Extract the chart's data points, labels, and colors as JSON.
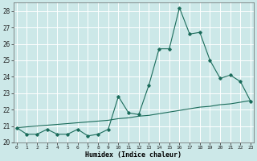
{
  "xlabel": "Humidex (Indice chaleur)",
  "background_color": "#cce8e8",
  "grid_color": "#ffffff",
  "line_color": "#1a6b5a",
  "x": [
    0,
    1,
    2,
    3,
    4,
    5,
    6,
    7,
    8,
    9,
    10,
    11,
    12,
    13,
    14,
    15,
    16,
    17,
    18,
    19,
    20,
    21,
    22,
    23
  ],
  "y_main": [
    20.9,
    20.5,
    20.5,
    20.8,
    20.5,
    20.5,
    20.8,
    20.4,
    20.5,
    20.8,
    22.8,
    21.8,
    21.7,
    23.5,
    25.7,
    25.7,
    28.2,
    26.6,
    26.7,
    25.0,
    23.9,
    24.1,
    23.7,
    22.5
  ],
  "y_trend": [
    20.9,
    20.95,
    21.0,
    21.05,
    21.1,
    21.15,
    21.2,
    21.25,
    21.3,
    21.35,
    21.45,
    21.5,
    21.6,
    21.65,
    21.75,
    21.85,
    21.95,
    22.05,
    22.15,
    22.2,
    22.3,
    22.35,
    22.45,
    22.55
  ],
  "ylim": [
    20,
    28.5
  ],
  "xlim": [
    -0.3,
    23.3
  ],
  "yticks": [
    20,
    21,
    22,
    23,
    24,
    25,
    26,
    27,
    28
  ],
  "xticks": [
    0,
    1,
    2,
    3,
    4,
    5,
    6,
    7,
    8,
    9,
    10,
    11,
    12,
    13,
    14,
    15,
    16,
    17,
    18,
    19,
    20,
    21,
    22,
    23
  ]
}
